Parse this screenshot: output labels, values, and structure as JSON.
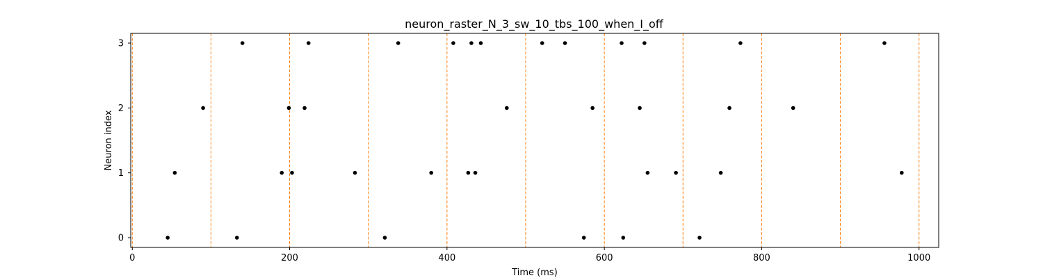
{
  "chart_data": {
    "type": "scatter",
    "title": "neuron_raster_N_3_sw_10_tbs_100_when_I_off",
    "xlabel": "Time (ms)",
    "ylabel": "Neuron index",
    "xlim": [
      -2,
      1025
    ],
    "ylim": [
      -0.15,
      3.15
    ],
    "x_ticks": [
      0,
      200,
      400,
      600,
      800,
      1000
    ],
    "y_ticks": [
      0,
      1,
      2,
      3
    ],
    "x_tick_labels": [
      "0",
      "200",
      "400",
      "600",
      "800",
      "1000"
    ],
    "y_tick_labels": [
      "0",
      "1",
      "2",
      "3"
    ],
    "grid": false,
    "legend": "none",
    "vlines": {
      "x": [
        0,
        100,
        200,
        300,
        400,
        500,
        600,
        700,
        800,
        900,
        1000
      ],
      "color": "#ff7f0e",
      "style": "dashed"
    },
    "series": [
      {
        "color": "#000000",
        "points": [
          {
            "x": 45,
            "y": 0
          },
          {
            "x": 133,
            "y": 0
          },
          {
            "x": 321,
            "y": 0
          },
          {
            "x": 574,
            "y": 0
          },
          {
            "x": 624,
            "y": 0
          },
          {
            "x": 721,
            "y": 0
          },
          {
            "x": 54,
            "y": 1
          },
          {
            "x": 190,
            "y": 1
          },
          {
            "x": 203,
            "y": 1
          },
          {
            "x": 283,
            "y": 1
          },
          {
            "x": 380,
            "y": 1
          },
          {
            "x": 427,
            "y": 1
          },
          {
            "x": 436,
            "y": 1
          },
          {
            "x": 655,
            "y": 1
          },
          {
            "x": 691,
            "y": 1
          },
          {
            "x": 748,
            "y": 1
          },
          {
            "x": 978,
            "y": 1
          },
          {
            "x": 90,
            "y": 2
          },
          {
            "x": 199,
            "y": 2
          },
          {
            "x": 219,
            "y": 2
          },
          {
            "x": 476,
            "y": 2
          },
          {
            "x": 585,
            "y": 2
          },
          {
            "x": 645,
            "y": 2
          },
          {
            "x": 759,
            "y": 2
          },
          {
            "x": 840,
            "y": 2
          },
          {
            "x": 140,
            "y": 3
          },
          {
            "x": 224,
            "y": 3
          },
          {
            "x": 338,
            "y": 3
          },
          {
            "x": 408,
            "y": 3
          },
          {
            "x": 431,
            "y": 3
          },
          {
            "x": 443,
            "y": 3
          },
          {
            "x": 521,
            "y": 3
          },
          {
            "x": 550,
            "y": 3
          },
          {
            "x": 622,
            "y": 3
          },
          {
            "x": 651,
            "y": 3
          },
          {
            "x": 773,
            "y": 3
          },
          {
            "x": 956,
            "y": 3
          }
        ]
      }
    ]
  }
}
